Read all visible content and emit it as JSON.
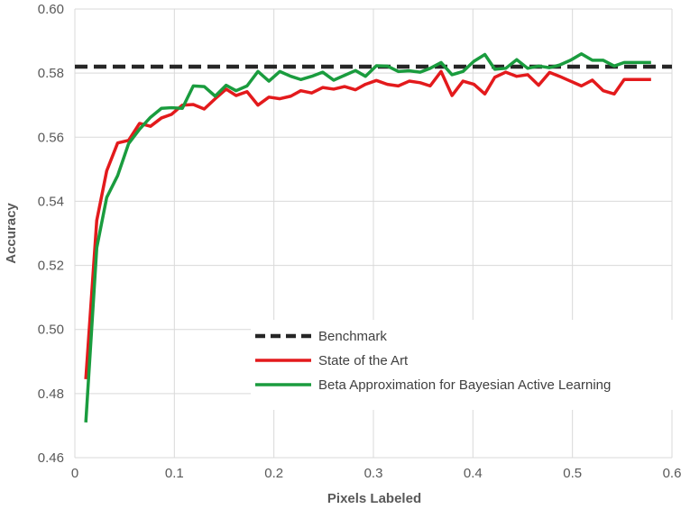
{
  "chart_data": {
    "type": "line",
    "title": "",
    "xlabel": "Pixels Labeled",
    "ylabel": "Accuracy",
    "xlim": [
      0,
      0.6
    ],
    "ylim": [
      0.46,
      0.6
    ],
    "x_ticks": [
      "0",
      "0.1",
      "0.2",
      "0.3",
      "0.4",
      "0.5",
      "0.6"
    ],
    "y_ticks": [
      "0.46",
      "0.48",
      "0.50",
      "0.52",
      "0.54",
      "0.56",
      "0.58",
      "0.60"
    ],
    "grid": true,
    "legend_position": "bottom-right",
    "series": [
      {
        "name": "Benchmark",
        "color": "#262626",
        "style": "dashed",
        "x": [
          0.0,
          0.6
        ],
        "y": [
          0.582,
          0.582
        ]
      },
      {
        "name": "State of the Art",
        "color": "#e31a1c",
        "style": "solid",
        "x": [
          0.011,
          0.022,
          0.032,
          0.043,
          0.054,
          0.065,
          0.076,
          0.087,
          0.097,
          0.108,
          0.119,
          0.13,
          0.141,
          0.152,
          0.162,
          0.173,
          0.184,
          0.195,
          0.206,
          0.217,
          0.227,
          0.238,
          0.249,
          0.26,
          0.271,
          0.282,
          0.292,
          0.303,
          0.314,
          0.325,
          0.336,
          0.347,
          0.357,
          0.368,
          0.379,
          0.39,
          0.401,
          0.412,
          0.422,
          0.433,
          0.444,
          0.455,
          0.466,
          0.477,
          0.487,
          0.498,
          0.509,
          0.52,
          0.531,
          0.542,
          0.552,
          0.563,
          0.574,
          0.579
        ],
        "y": [
          0.4845,
          0.534,
          0.5495,
          0.5582,
          0.559,
          0.5643,
          0.5634,
          0.566,
          0.5671,
          0.57,
          0.5702,
          0.5688,
          0.572,
          0.575,
          0.573,
          0.5742,
          0.57,
          0.5725,
          0.572,
          0.5728,
          0.5745,
          0.5738,
          0.5755,
          0.575,
          0.5758,
          0.5748,
          0.5765,
          0.5777,
          0.5765,
          0.576,
          0.5775,
          0.577,
          0.576,
          0.5805,
          0.573,
          0.5775,
          0.5765,
          0.5735,
          0.5787,
          0.5803,
          0.579,
          0.5795,
          0.5762,
          0.5802,
          0.579,
          0.5775,
          0.576,
          0.5778,
          0.5745,
          0.5735,
          0.578,
          0.578,
          0.578,
          0.578
        ]
      },
      {
        "name": "Beta Approximation for Bayesian Active Learning",
        "color": "#1a9c3e",
        "style": "solid",
        "x": [
          0.011,
          0.022,
          0.032,
          0.043,
          0.054,
          0.065,
          0.076,
          0.087,
          0.097,
          0.108,
          0.119,
          0.13,
          0.141,
          0.152,
          0.162,
          0.173,
          0.184,
          0.195,
          0.206,
          0.217,
          0.227,
          0.238,
          0.249,
          0.26,
          0.271,
          0.282,
          0.292,
          0.303,
          0.314,
          0.325,
          0.336,
          0.347,
          0.357,
          0.368,
          0.379,
          0.39,
          0.401,
          0.412,
          0.422,
          0.433,
          0.444,
          0.455,
          0.466,
          0.477,
          0.487,
          0.498,
          0.509,
          0.52,
          0.531,
          0.542,
          0.552,
          0.563,
          0.574,
          0.579
        ],
        "y": [
          0.471,
          0.5255,
          0.5412,
          0.548,
          0.558,
          0.5625,
          0.5662,
          0.569,
          0.5692,
          0.569,
          0.576,
          0.5758,
          0.5728,
          0.5762,
          0.5745,
          0.576,
          0.5805,
          0.5775,
          0.5805,
          0.579,
          0.578,
          0.579,
          0.5803,
          0.5778,
          0.5793,
          0.5808,
          0.579,
          0.5823,
          0.5822,
          0.5805,
          0.5807,
          0.5803,
          0.5815,
          0.5833,
          0.5795,
          0.5805,
          0.5837,
          0.5858,
          0.5812,
          0.5815,
          0.5842,
          0.5815,
          0.5822,
          0.5817,
          0.5825,
          0.584,
          0.586,
          0.584,
          0.584,
          0.5822,
          0.5833,
          0.5833,
          0.5833,
          0.5833
        ]
      }
    ]
  }
}
